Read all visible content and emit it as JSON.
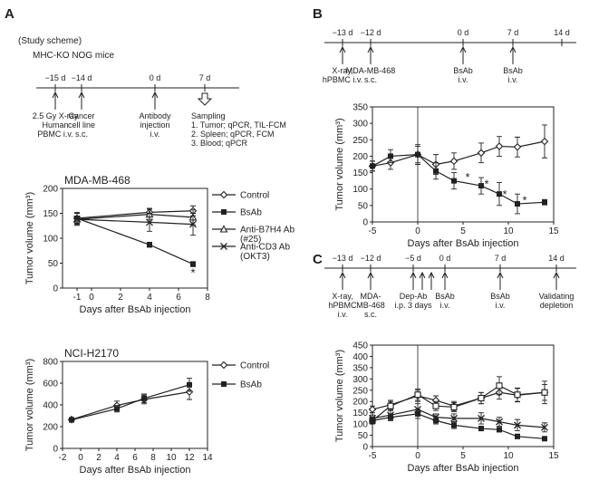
{
  "panels": {
    "A": {
      "label": "A",
      "study_scheme": "(Study scheme)",
      "mice": "MHC-KO NOG mice",
      "timeline": [
        {
          "day": "−15 d",
          "lines": [
            "2.5 Gy X-ray",
            "Human",
            "PBMC i.v."
          ]
        },
        {
          "day": "−14 d",
          "lines": [
            "Cancer",
            "cell line",
            "s.c."
          ]
        },
        {
          "day": "0 d",
          "lines": [
            "Antibody",
            "injection",
            "i.v."
          ]
        },
        {
          "day": "7 d",
          "lines": [
            "Sampling",
            "1. Tumor; qPCR, TIL-FCM",
            "2. Spleen; qPCR, FCM",
            "3. Blood; qPCR"
          ]
        }
      ]
    },
    "B": {
      "label": "B",
      "timeline": [
        {
          "day": "−13 d",
          "lines": [
            "X-ray,",
            "hPBMC i.v."
          ]
        },
        {
          "day": "−12 d",
          "lines": [
            "MDA-MB-468",
            "s.c."
          ]
        },
        {
          "day": "0 d",
          "lines": [
            "BsAb",
            "i.v."
          ]
        },
        {
          "day": "7 d",
          "lines": [
            "BsAb",
            "i.v."
          ]
        },
        {
          "day": "14 d",
          "lines": []
        }
      ]
    },
    "C": {
      "label": "C",
      "timeline": [
        {
          "day": "−13 d",
          "lines": [
            "X-ray,",
            "hPBMC",
            "i.v."
          ]
        },
        {
          "day": "−12 d",
          "lines": [
            "MDA-",
            "MB-468",
            "s.c."
          ]
        },
        {
          "day": "−5 d",
          "lines": [
            "Dep-Ab",
            "i.p. 3 days"
          ]
        },
        {
          "day": "0 d",
          "lines": [
            "BsAb",
            "i.v."
          ]
        },
        {
          "day": "7 d",
          "lines": [
            "BsAb",
            "i.v."
          ]
        },
        {
          "day": "14 d",
          "lines": [
            "Validating",
            "depletion"
          ]
        }
      ]
    }
  },
  "chart_data": [
    {
      "id": "A1",
      "type": "line",
      "title": "MDA-MB-468",
      "xlabel": "Days after BsAb injection",
      "ylabel": "Tumor volume (mm³)",
      "xlim": [
        -2,
        8
      ],
      "ylim": [
        0,
        200
      ],
      "xticks": [
        -1,
        0,
        2,
        4,
        6,
        8
      ],
      "yticks": [
        0,
        50,
        100,
        150,
        200
      ],
      "grid": false,
      "legend_position": "right",
      "x": [
        -1,
        4,
        7
      ],
      "series": [
        {
          "name": "Control",
          "marker": "open-diamond",
          "values": [
            140,
            152,
            155
          ],
          "errors": [
            12,
            8,
            10
          ]
        },
        {
          "name": "BsAb",
          "marker": "filled-square",
          "values": [
            140,
            87,
            48
          ],
          "errors": [
            10,
            5,
            5
          ]
        },
        {
          "name": "Anti-B7H4 Ab (#25)",
          "marker": "open-triangle",
          "values": [
            138,
            148,
            142
          ],
          "errors": [
            12,
            10,
            15
          ]
        },
        {
          "name": "Anti-CD3 Ab (OKT3)",
          "marker": "cross",
          "values": [
            138,
            132,
            128
          ],
          "errors": [
            12,
            18,
            22
          ]
        }
      ],
      "annotations": [
        {
          "text": "*",
          "x": 7,
          "y": 30
        }
      ]
    },
    {
      "id": "A2",
      "type": "line",
      "title": "NCI-H2170",
      "xlabel": "Days after BsAb injection",
      "ylabel": "Tumor volume (mm³)",
      "xlim": [
        -2,
        14
      ],
      "ylim": [
        0,
        800
      ],
      "xticks": [
        -2,
        0,
        2,
        4,
        6,
        8,
        10,
        12,
        14
      ],
      "yticks": [
        0,
        200,
        400,
        600,
        800
      ],
      "grid": false,
      "legend_position": "right",
      "x": [
        -1,
        4,
        7,
        12
      ],
      "series": [
        {
          "name": "Control",
          "marker": "open-diamond",
          "values": [
            265,
            395,
            450,
            520
          ],
          "errors": [
            20,
            40,
            40,
            70
          ]
        },
        {
          "name": "BsAb",
          "marker": "filled-square",
          "values": [
            262,
            365,
            460,
            585
          ],
          "errors": [
            20,
            30,
            40,
            60
          ]
        }
      ]
    },
    {
      "id": "B",
      "type": "line",
      "title": "",
      "xlabel": "Days after BsAb injection",
      "ylabel": "Tumor volume (mm³)",
      "xlim": [
        -5,
        15
      ],
      "ylim": [
        0,
        350
      ],
      "xticks": [
        -5,
        0,
        5,
        10,
        15
      ],
      "yticks": [
        0,
        50,
        100,
        150,
        200,
        250,
        300,
        350
      ],
      "grid": false,
      "legend_position": "none",
      "x": [
        -5,
        -3,
        0,
        2,
        4,
        7,
        9,
        11,
        14
      ],
      "series": [
        {
          "name": "",
          "marker": "open-diamond",
          "values": [
            170,
            180,
            205,
            175,
            185,
            210,
            230,
            228,
            245
          ],
          "errors": [
            15,
            20,
            25,
            30,
            25,
            30,
            30,
            30,
            50
          ]
        },
        {
          "name": "",
          "marker": "filled-square",
          "values": [
            170,
            200,
            205,
            155,
            125,
            110,
            85,
            55,
            60
          ],
          "errors": [
            15,
            20,
            30,
            25,
            25,
            25,
            35,
            30,
            8
          ]
        }
      ],
      "annotations": [
        {
          "text": "*",
          "x": 5.5,
          "y": 135
        },
        {
          "text": "*",
          "x": 7.6,
          "y": 115
        },
        {
          "text": "*",
          "x": 9.6,
          "y": 82
        },
        {
          "text": "*",
          "x": 11.8,
          "y": 65
        }
      ]
    },
    {
      "id": "C",
      "type": "line",
      "title": "",
      "xlabel": "Days after BsAb injection",
      "ylabel": "Tumor volume (mm³)",
      "xlim": [
        -5,
        15
      ],
      "ylim": [
        0,
        450
      ],
      "xticks": [
        -5,
        0,
        5,
        10,
        15
      ],
      "yticks": [
        0,
        50,
        100,
        150,
        200,
        250,
        300,
        350,
        400,
        450
      ],
      "grid": false,
      "legend_position": "none",
      "x": [
        -5,
        -3,
        0,
        2,
        4,
        7,
        9,
        11,
        14
      ],
      "series": [
        {
          "name": "",
          "marker": "open-diamond",
          "values": [
            165,
            185,
            225,
            205,
            180,
            215,
            240,
            228,
            240
          ],
          "errors": [
            15,
            20,
            25,
            20,
            20,
            25,
            30,
            30,
            35
          ]
        },
        {
          "name": "",
          "marker": "open-square",
          "values": [
            115,
            180,
            230,
            180,
            175,
            215,
            270,
            230,
            240
          ],
          "errors": [
            15,
            20,
            25,
            20,
            20,
            25,
            40,
            30,
            50
          ]
        },
        {
          "name": "",
          "marker": "cross",
          "values": [
            125,
            140,
            165,
            130,
            125,
            125,
            110,
            95,
            85
          ],
          "errors": [
            15,
            20,
            25,
            15,
            20,
            25,
            20,
            25,
            20
          ]
        },
        {
          "name": "",
          "marker": "filled-square",
          "values": [
            115,
            130,
            145,
            115,
            95,
            80,
            75,
            45,
            35
          ],
          "errors": [
            15,
            15,
            20,
            15,
            15,
            10,
            10,
            10,
            5
          ]
        }
      ]
    }
  ]
}
